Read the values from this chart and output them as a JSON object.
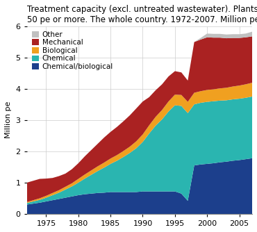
{
  "title": "Treatment capacity (excl. untreated wastewater). Plants\n50 pe or more. The whole country. 1972-2007. Million pe",
  "ylabel": "Million pe",
  "xlim": [
    1972,
    2007
  ],
  "ylim": [
    0,
    6
  ],
  "yticks": [
    0,
    1,
    2,
    3,
    4,
    5,
    6
  ],
  "xticks": [
    1975,
    1980,
    1985,
    1990,
    1995,
    2000,
    2005
  ],
  "years": [
    1972,
    1973,
    1974,
    1975,
    1976,
    1977,
    1978,
    1979,
    1980,
    1981,
    1982,
    1983,
    1984,
    1985,
    1986,
    1987,
    1988,
    1989,
    1990,
    1991,
    1992,
    1993,
    1994,
    1995,
    1996,
    1997,
    1998,
    1999,
    2000,
    2001,
    2002,
    2003,
    2004,
    2005,
    2006,
    2007
  ],
  "chemical_biological": [
    0.3,
    0.33,
    0.36,
    0.4,
    0.44,
    0.48,
    0.52,
    0.56,
    0.6,
    0.63,
    0.65,
    0.67,
    0.68,
    0.7,
    0.7,
    0.7,
    0.7,
    0.7,
    0.72,
    0.72,
    0.72,
    0.72,
    0.72,
    0.72,
    0.65,
    0.42,
    1.55,
    1.58,
    1.6,
    1.62,
    1.65,
    1.67,
    1.7,
    1.72,
    1.75,
    1.78
  ],
  "chemical": [
    0.05,
    0.07,
    0.09,
    0.12,
    0.16,
    0.2,
    0.26,
    0.32,
    0.4,
    0.5,
    0.6,
    0.7,
    0.8,
    0.9,
    1.0,
    1.12,
    1.25,
    1.4,
    1.58,
    1.85,
    2.1,
    2.3,
    2.55,
    2.75,
    2.8,
    2.8,
    1.95,
    1.97,
    1.98,
    1.98,
    1.97,
    1.96,
    1.96,
    1.96,
    1.96,
    1.97
  ],
  "biological": [
    0.03,
    0.04,
    0.05,
    0.06,
    0.07,
    0.08,
    0.09,
    0.1,
    0.12,
    0.13,
    0.14,
    0.15,
    0.16,
    0.17,
    0.18,
    0.19,
    0.2,
    0.22,
    0.24,
    0.26,
    0.28,
    0.3,
    0.32,
    0.34,
    0.35,
    0.36,
    0.37,
    0.37,
    0.38,
    0.38,
    0.39,
    0.4,
    0.41,
    0.42,
    0.43,
    0.44
  ],
  "mechanical": [
    0.62,
    0.62,
    0.62,
    0.55,
    0.48,
    0.45,
    0.42,
    0.45,
    0.5,
    0.58,
    0.65,
    0.72,
    0.8,
    0.85,
    0.9,
    0.95,
    1.0,
    1.05,
    1.05,
    0.9,
    0.85,
    0.82,
    0.8,
    0.75,
    0.72,
    0.68,
    1.62,
    1.65,
    1.68,
    1.65,
    1.62,
    1.58,
    1.55,
    1.52,
    1.5,
    1.48
  ],
  "other": [
    0.0,
    0.0,
    0.0,
    0.0,
    0.0,
    0.0,
    0.0,
    0.0,
    0.0,
    0.0,
    0.0,
    0.0,
    0.0,
    0.0,
    0.0,
    0.0,
    0.0,
    0.0,
    0.0,
    0.0,
    0.0,
    0.0,
    0.0,
    0.0,
    0.0,
    0.0,
    0.0,
    0.05,
    0.12,
    0.12,
    0.12,
    0.12,
    0.12,
    0.12,
    0.12,
    0.15
  ],
  "colors": {
    "chemical_biological": "#1c3f8c",
    "chemical": "#2ab5b0",
    "biological": "#f0a020",
    "mechanical": "#aa2222",
    "other": "#c0c0c0"
  },
  "background_color": "#ffffff",
  "grid_color": "#cccccc"
}
